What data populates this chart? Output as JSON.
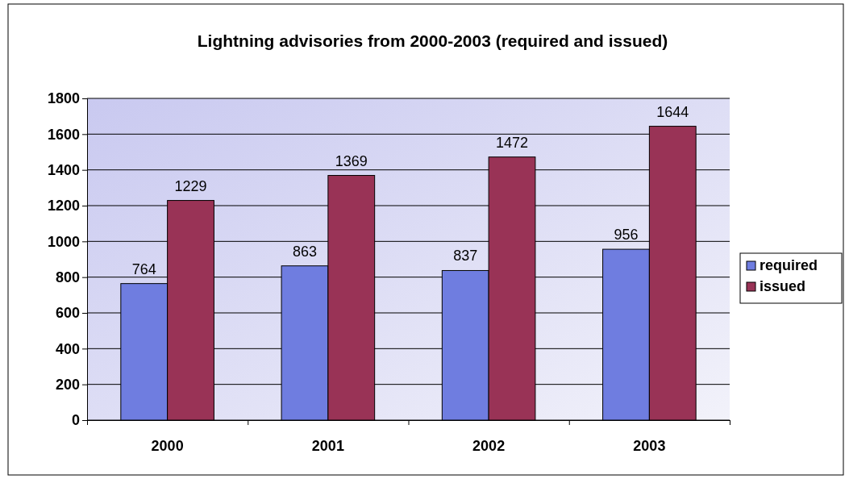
{
  "chart_data": {
    "type": "bar",
    "title": "Lightning advisories from 2000-2003 (required and issued)",
    "categories": [
      "2000",
      "2001",
      "2002",
      "2003"
    ],
    "series": [
      {
        "name": "required",
        "color": "#6f7de0",
        "values": [
          764,
          863,
          837,
          956
        ]
      },
      {
        "name": "issued",
        "color": "#993356",
        "values": [
          1229,
          1369,
          1472,
          1644
        ]
      }
    ],
    "ylim": [
      0,
      1800
    ],
    "yticks": [
      0,
      200,
      400,
      600,
      800,
      1000,
      1200,
      1400,
      1600,
      1800
    ],
    "grid": "y",
    "legend": "right",
    "data_labels": true
  }
}
